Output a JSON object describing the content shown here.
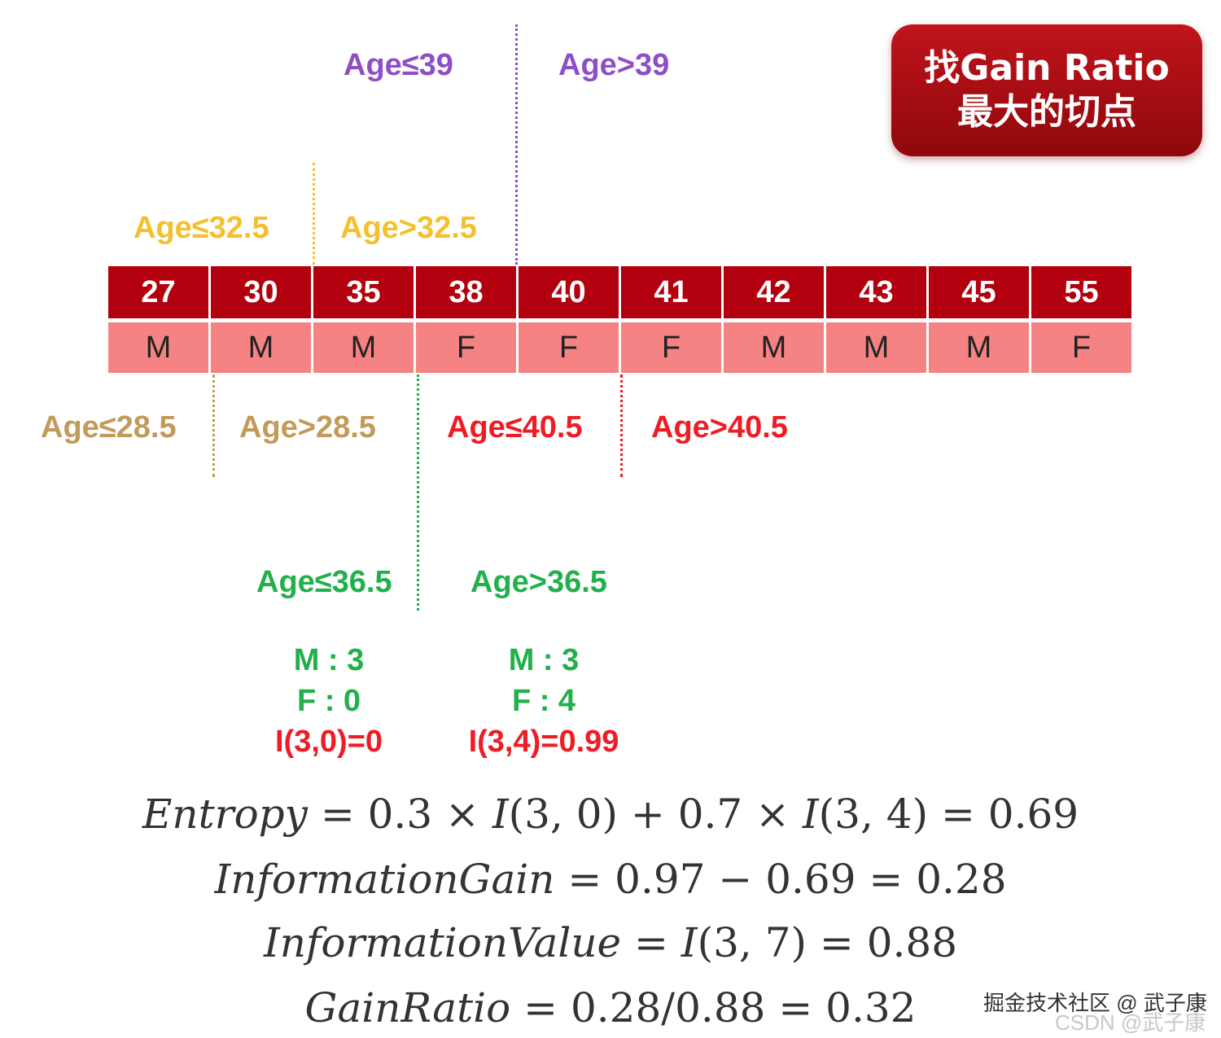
{
  "badge": {
    "line1": "找Gain Ratio",
    "line2": "最大的切点"
  },
  "splits": {
    "age39": {
      "left": "Age≤39",
      "right": "Age>39",
      "color": "#8e4ec6"
    },
    "age32_5": {
      "left": "Age≤32.5",
      "right": "Age>32.5",
      "color": "#f4c02e"
    },
    "age28_5": {
      "left": "Age≤28.5",
      "right": "Age>28.5",
      "color": "#c29a5a"
    },
    "age40_5": {
      "left": "Age≤40.5",
      "right": "Age>40.5",
      "color": "#ee1c24"
    },
    "age36_5": {
      "left": "Age≤36.5",
      "right": "Age>36.5",
      "color": "#22b04a"
    }
  },
  "table": {
    "ages": [
      "27",
      "30",
      "35",
      "38",
      "40",
      "41",
      "42",
      "43",
      "45",
      "55"
    ],
    "sexes": [
      "M",
      "M",
      "M",
      "F",
      "F",
      "F",
      "M",
      "M",
      "M",
      "F"
    ]
  },
  "left_stats": {
    "m": "M : 3",
    "f": "F : 0",
    "info": "I(3,0)=0"
  },
  "right_stats": {
    "m": "M : 3",
    "f": "F : 4",
    "info": "I(3,4)=0.99"
  },
  "formulas": {
    "entropy": {
      "name": "Entropy",
      "expr": " = 0.3 × ",
      "i1": "I",
      "a1": "(3, 0) + 0.7 × ",
      "i2": "I",
      "a2": "(3, 4) = 0.69"
    },
    "gain": {
      "name": "InformationGain",
      "expr": " = 0.97 − 0.69 = 0.28"
    },
    "value": {
      "name": "InformationValue",
      "expr": " = ",
      "i": "I",
      "a": "(3, 7) = 0.88"
    },
    "ratio": {
      "name": "GainRatio",
      "expr": " = 0.28/0.88 = 0.32"
    }
  },
  "watermark": {
    "line1": "掘金技术社区 @ 武子康",
    "line2": "CSDN @武子康"
  }
}
